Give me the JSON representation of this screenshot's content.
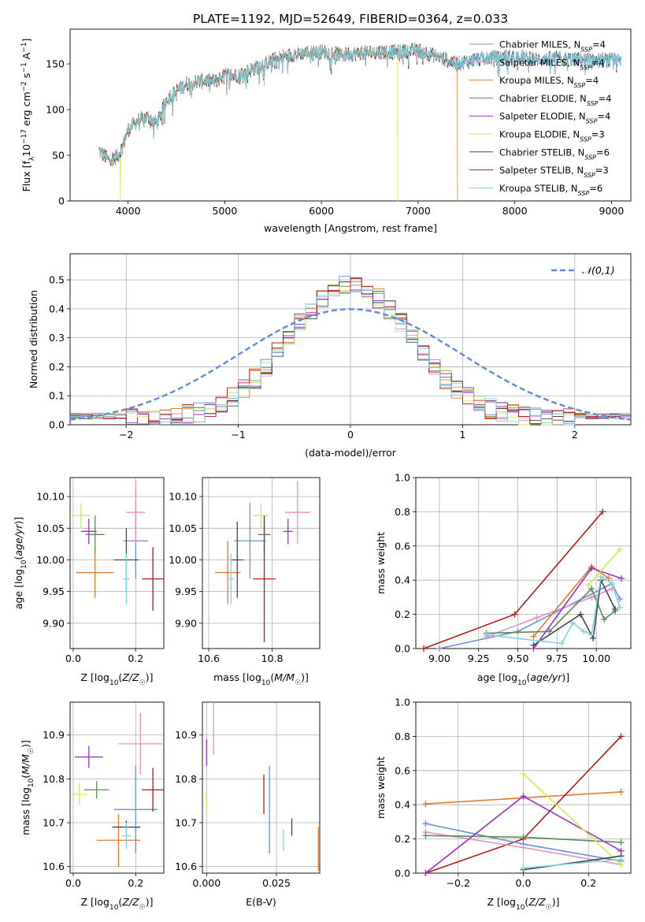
{
  "title": "PLATE=1192, MJD=52649, FIBERID=0364, z=0.033",
  "models": [
    {
      "key": "chabrier_miles",
      "label_main": "Chabrier MILES, N",
      "label_sub": "SSP",
      "label_tail": "=4",
      "color": "#6b8fd6"
    },
    {
      "key": "salpeter_miles",
      "label_main": "Salpeter MILES, N",
      "label_sub": "SSP",
      "label_tail": "=4",
      "color": "#e88fc0"
    },
    {
      "key": "kroupa_miles",
      "label_main": "Kroupa MILES, N",
      "label_sub": "SSP",
      "label_tail": "=4",
      "color": "#e07b2a"
    },
    {
      "key": "chabrier_elodie",
      "label_main": "Chabrier ELODIE, N",
      "label_sub": "SSP",
      "label_tail": "=4",
      "color": "#5b8a5b"
    },
    {
      "key": "salpeter_elodie",
      "label_main": "Salpeter ELODIE, N",
      "label_sub": "SSP",
      "label_tail": "=4",
      "color": "#9b30c0"
    },
    {
      "key": "kroupa_elodie",
      "label_main": "Kroupa ELODIE, N",
      "label_sub": "SSP",
      "label_tail": "=3",
      "color": "#d4e84a"
    },
    {
      "key": "chabrier_stelib",
      "label_main": "Chabrier STELIB, N",
      "label_sub": "SSP",
      "label_tail": "=6",
      "color": "#444444"
    },
    {
      "key": "salpeter_stelib",
      "label_main": "Salpeter STELIB, N",
      "label_sub": "SSP",
      "label_tail": "=3",
      "color": "#b01a1a"
    },
    {
      "key": "kroupa_stelib",
      "label_main": "Kroupa STELIB, N",
      "label_sub": "SSP",
      "label_tail": "=6",
      "color": "#7fd6dc"
    }
  ],
  "chart_data": [
    {
      "id": "spectrum",
      "type": "line",
      "xlabel": "wavelength [Angstrom, rest frame]",
      "ylabel": "Flux [f_λ 10^-17 erg cm^-2 s^-1 A^-1]",
      "xlim": [
        3400,
        9200
      ],
      "ylim": [
        0,
        188
      ],
      "xticks": [
        "4000",
        "5000",
        "6000",
        "7000",
        "8000",
        "9000"
      ],
      "yticks": [
        "0",
        "50",
        "100",
        "150"
      ],
      "continuum": [
        [
          3700,
          55
        ],
        [
          3800,
          45
        ],
        [
          3900,
          50
        ],
        [
          3950,
          62
        ],
        [
          4000,
          78
        ],
        [
          4100,
          88
        ],
        [
          4200,
          92
        ],
        [
          4300,
          85
        ],
        [
          4400,
          112
        ],
        [
          4500,
          120
        ],
        [
          4600,
          128
        ],
        [
          4700,
          130
        ],
        [
          4800,
          132
        ],
        [
          4900,
          131
        ],
        [
          5000,
          138
        ],
        [
          5100,
          137
        ],
        [
          5200,
          140
        ],
        [
          5400,
          150
        ],
        [
          5600,
          158
        ],
        [
          5800,
          162
        ],
        [
          6000,
          163
        ],
        [
          6200,
          160
        ],
        [
          6400,
          162
        ],
        [
          6600,
          163
        ],
        [
          6800,
          163
        ],
        [
          7000,
          165
        ],
        [
          7200,
          158
        ],
        [
          7400,
          150
        ],
        [
          7600,
          155
        ],
        [
          7800,
          157
        ],
        [
          8000,
          158
        ],
        [
          8200,
          155
        ],
        [
          8500,
          156
        ],
        [
          8800,
          154
        ],
        [
          9000,
          154
        ],
        [
          9100,
          152
        ]
      ],
      "drops": [
        {
          "series": "kroupa_elodie",
          "x": 3920
        },
        {
          "series": "kroupa_elodie",
          "x": 6790
        },
        {
          "series": "kroupa_miles",
          "x": 7410
        }
      ],
      "series_span": {
        "kroupa_miles": [
          3700,
          7410
        ],
        "salpeter_stelib": [
          3700,
          7410
        ],
        "kroupa_elodie": [
          3700,
          6790
        ]
      }
    },
    {
      "id": "residual_hist",
      "type": "step",
      "xlabel": "(data-model)/error",
      "ylabel": "Normed distribution",
      "xlim": [
        -2.5,
        2.5
      ],
      "ylim": [
        0,
        0.59
      ],
      "xticks": [
        -2,
        -1,
        0,
        1,
        2
      ],
      "xtick_labels": [
        "−2",
        "−1",
        "0",
        "1",
        "2"
      ],
      "yticks": [
        0,
        0.1,
        0.2,
        0.3,
        0.4,
        0.5
      ],
      "ytick_labels": [
        "0.0",
        "0.1",
        "0.2",
        "0.3",
        "0.4",
        "0.5"
      ],
      "bin_width": 0.1,
      "legend": "𝒩(0,1)",
      "gauss_color": "#5b8ad8"
    },
    {
      "id": "age_vs_Z",
      "type": "scatter",
      "xlabel": "Z [log10(Z/Z☉)]",
      "ylabel": "age  [log10(age/yr)]",
      "xlim": [
        -0.01,
        0.29
      ],
      "ylim": [
        9.86,
        10.13
      ],
      "xticks": [
        0,
        0.2
      ],
      "xtick_labels": [
        "0.0",
        "0.2"
      ],
      "yticks": [
        9.9,
        9.95,
        10.0,
        10.05,
        10.1
      ],
      "ytick_labels": [
        "9.90",
        "9.95",
        "10.00",
        "10.05",
        "10.10"
      ],
      "points": [
        {
          "s": "chabrier_miles",
          "x": 0.2,
          "y": 10.03,
          "xe": 0.04,
          "ye": 0.06
        },
        {
          "s": "salpeter_miles",
          "x": 0.2,
          "y": 10.075,
          "xe": 0.03,
          "ye": 0.05
        },
        {
          "s": "kroupa_miles",
          "x": 0.07,
          "y": 9.98,
          "xe": 0.06,
          "ye": 0.04
        },
        {
          "s": "chabrier_elodie",
          "x": 0.07,
          "y": 10.04,
          "xe": 0.03,
          "ye": 0.03
        },
        {
          "s": "salpeter_elodie",
          "x": 0.05,
          "y": 10.045,
          "xe": 0.025,
          "ye": 0.02
        },
        {
          "s": "kroupa_elodie",
          "x": 0.025,
          "y": 10.07,
          "xe": 0.03,
          "ye": 0.02
        },
        {
          "s": "chabrier_stelib",
          "x": 0.17,
          "y": 10.0,
          "xe": 0.04,
          "ye": 0.05
        },
        {
          "s": "salpeter_stelib",
          "x": 0.255,
          "y": 9.97,
          "xe": 0.035,
          "ye": 0.05
        },
        {
          "s": "kroupa_stelib",
          "x": 0.17,
          "y": 9.97,
          "xe": 0.01,
          "ye": 0.04
        }
      ]
    },
    {
      "id": "age_vs_mass",
      "type": "scatter",
      "xlabel": "mass [log10(M/M☉)]",
      "ylabel": "",
      "xlim": [
        10.58,
        10.95
      ],
      "ylim": [
        9.86,
        10.13
      ],
      "xticks": [
        10.6,
        10.8
      ],
      "xtick_labels": [
        "10.6",
        "10.8"
      ],
      "yticks": [
        9.9,
        9.95,
        10.0,
        10.05,
        10.1
      ],
      "ytick_labels": [
        "9.90",
        "9.95",
        "10.00",
        "10.05",
        "10.10"
      ],
      "points": [
        {
          "s": "chabrier_miles",
          "x": 10.73,
          "y": 10.03,
          "xe": 0.05,
          "ye": 0.06
        },
        {
          "s": "salpeter_miles",
          "x": 10.88,
          "y": 10.075,
          "xe": 0.04,
          "ye": 0.05
        },
        {
          "s": "kroupa_miles",
          "x": 10.66,
          "y": 9.98,
          "xe": 0.04,
          "ye": 0.05
        },
        {
          "s": "chabrier_elodie",
          "x": 10.775,
          "y": 10.04,
          "xe": 0.02,
          "ye": 0.03
        },
        {
          "s": "salpeter_elodie",
          "x": 10.85,
          "y": 10.045,
          "xe": 0.015,
          "ye": 0.02
        },
        {
          "s": "kroupa_elodie",
          "x": 10.765,
          "y": 10.07,
          "xe": 0.025,
          "ye": 0.02
        },
        {
          "s": "chabrier_stelib",
          "x": 10.69,
          "y": 10.0,
          "xe": 0.02,
          "ye": 0.06
        },
        {
          "s": "salpeter_stelib",
          "x": 10.775,
          "y": 9.97,
          "xe": 0.035,
          "ye": 0.1
        },
        {
          "s": "kroupa_stelib",
          "x": 10.67,
          "y": 9.97,
          "xe": 0.01,
          "ye": 0.04
        }
      ]
    },
    {
      "id": "weight_vs_age",
      "type": "line",
      "xlabel": "age  [log10(age/yr)]",
      "ylabel": "mass weight",
      "xlim": [
        8.85,
        10.22
      ],
      "ylim": [
        0,
        1.0
      ],
      "xticks": [
        9.0,
        9.25,
        9.5,
        9.75,
        10.0
      ],
      "xtick_labels": [
        "9.00",
        "9.25",
        "9.50",
        "9.75",
        "10.00"
      ],
      "yticks": [
        0,
        0.2,
        0.4,
        0.6,
        0.8,
        1.0
      ],
      "ytick_labels": [
        "0.0",
        "0.2",
        "0.4",
        "0.6",
        "0.8",
        "1.0"
      ],
      "series": [
        {
          "s": "salpeter_stelib",
          "pts": [
            [
              8.9,
              0.0
            ],
            [
              9.48,
              0.2
            ],
            [
              10.04,
              0.8
            ]
          ]
        },
        {
          "s": "chabrier_miles",
          "pts": [
            [
              9.0,
              0.0
            ],
            [
              9.5,
              0.1
            ],
            [
              10.1,
              0.38
            ],
            [
              10.15,
              0.29
            ]
          ]
        },
        {
          "s": "salpeter_miles",
          "pts": [
            [
              9.3,
              0.07
            ],
            [
              9.62,
              0.18
            ],
            [
              9.97,
              0.3
            ],
            [
              10.1,
              0.35
            ]
          ]
        },
        {
          "s": "kroupa_miles",
          "pts": [
            [
              9.6,
              0.07
            ],
            [
              9.97,
              0.48
            ],
            [
              10.08,
              0.41
            ]
          ]
        },
        {
          "s": "chabrier_elodie",
          "pts": [
            [
              9.3,
              0.09
            ],
            [
              9.7,
              0.1
            ],
            [
              9.97,
              0.35
            ],
            [
              10.05,
              0.17
            ],
            [
              10.12,
              0.22
            ]
          ]
        },
        {
          "s": "salpeter_elodie",
          "pts": [
            [
              9.6,
              0.0
            ],
            [
              9.97,
              0.47
            ],
            [
              10.16,
              0.41
            ]
          ]
        },
        {
          "s": "kroupa_elodie",
          "pts": [
            [
              9.95,
              0.37
            ],
            [
              10.15,
              0.58
            ]
          ]
        },
        {
          "s": "chabrier_stelib",
          "pts": [
            [
              9.6,
              0.02
            ],
            [
              9.9,
              0.2
            ],
            [
              9.98,
              0.06
            ],
            [
              10.03,
              0.4
            ],
            [
              10.12,
              0.23
            ]
          ]
        },
        {
          "s": "kroupa_stelib",
          "pts": [
            [
              9.3,
              0.08
            ],
            [
              9.78,
              0.03
            ],
            [
              9.85,
              0.15
            ],
            [
              9.92,
              0.1
            ],
            [
              9.97,
              0.08
            ],
            [
              10.03,
              0.42
            ],
            [
              10.1,
              0.38
            ],
            [
              10.15,
              0.24
            ]
          ]
        }
      ]
    },
    {
      "id": "mass_vs_Z",
      "type": "scatter",
      "xlabel": "Z [log10(Z/Z☉)]",
      "ylabel": "mass [log10(M/M☉)]",
      "xlim": [
        -0.01,
        0.29
      ],
      "ylim": [
        10.585,
        10.975
      ],
      "xticks": [
        0,
        0.2
      ],
      "xtick_labels": [
        "0.0",
        "0.2"
      ],
      "yticks": [
        10.6,
        10.7,
        10.8,
        10.9
      ],
      "ytick_labels": [
        "10.6",
        "10.7",
        "10.8",
        "10.9"
      ],
      "points": [
        {
          "s": "chabrier_miles",
          "x": 0.2,
          "y": 10.73,
          "xe": 0.07,
          "ye": 0.1
        },
        {
          "s": "salpeter_miles",
          "x": 0.215,
          "y": 10.88,
          "xe": 0.07,
          "ye": 0.07
        },
        {
          "s": "kroupa_miles",
          "x": 0.145,
          "y": 10.66,
          "xe": 0.07,
          "ye": 0.06
        },
        {
          "s": "chabrier_elodie",
          "x": 0.075,
          "y": 10.775,
          "xe": 0.04,
          "ye": 0.02
        },
        {
          "s": "salpeter_elodie",
          "x": 0.05,
          "y": 10.85,
          "xe": 0.045,
          "ye": 0.025
        },
        {
          "s": "kroupa_elodie",
          "x": 0.02,
          "y": 10.765,
          "xe": 0.025,
          "ye": 0.025
        },
        {
          "s": "chabrier_stelib",
          "x": 0.17,
          "y": 10.69,
          "xe": 0.045,
          "ye": 0.015
        },
        {
          "s": "salpeter_stelib",
          "x": 0.255,
          "y": 10.775,
          "xe": 0.035,
          "ye": 0.05
        },
        {
          "s": "kroupa_stelib",
          "x": 0.17,
          "y": 10.67,
          "xe": 0.015,
          "ye": 0.03
        }
      ]
    },
    {
      "id": "mass_vs_EBV",
      "type": "scatter",
      "xlabel": "E(B-V)",
      "ylabel": "",
      "xlim": [
        -0.0015,
        0.0405
      ],
      "ylim": [
        10.585,
        10.975
      ],
      "xticks": [
        0,
        0.025
      ],
      "xtick_labels": [
        "0.000",
        "0.025"
      ],
      "yticks": [
        10.6,
        10.7,
        10.8,
        10.9
      ],
      "ytick_labels": [
        "10.6",
        "10.7",
        "10.8",
        "10.9"
      ],
      "points": [
        {
          "s": "chabrier_miles",
          "x": 0.0225,
          "y": 10.73,
          "xe": 0,
          "ye": 0.1
        },
        {
          "s": "salpeter_miles",
          "x": 0.0025,
          "y": 10.915,
          "xe": 0,
          "ye": 0.06
        },
        {
          "s": "kroupa_miles",
          "x": 0.04,
          "y": 10.64,
          "xe": 0,
          "ye": 0.05
        },
        {
          "s": "chabrier_elodie",
          "x": 0.0,
          "y": 10.76,
          "xe": 0,
          "ye": 0.01
        },
        {
          "s": "salpeter_elodie",
          "x": 0.0,
          "y": 10.86,
          "xe": 0,
          "ye": 0.03
        },
        {
          "s": "kroupa_elodie",
          "x": 0.0,
          "y": 10.75,
          "xe": 0,
          "ye": 0.02
        },
        {
          "s": "chabrier_stelib",
          "x": 0.0305,
          "y": 10.69,
          "xe": 0,
          "ye": 0.02
        },
        {
          "s": "salpeter_stelib",
          "x": 0.0205,
          "y": 10.765,
          "xe": 0,
          "ye": 0.045
        },
        {
          "s": "kroupa_stelib",
          "x": 0.0275,
          "y": 10.66,
          "xe": 0,
          "ye": 0.025
        }
      ]
    },
    {
      "id": "weight_vs_Z",
      "type": "line",
      "xlabel": "Z [log10(Z/Z☉)]",
      "ylabel": "mass weight",
      "xlim": [
        -0.33,
        0.33
      ],
      "ylim": [
        0,
        1.0
      ],
      "xticks": [
        -0.2,
        0,
        0.2
      ],
      "xtick_labels": [
        "−0.2",
        "0.0",
        "0.2"
      ],
      "yticks": [
        0,
        0.2,
        0.4,
        0.6,
        0.8,
        1.0
      ],
      "ytick_labels": [
        "0.0",
        "0.2",
        "0.4",
        "0.6",
        "0.8",
        "1.0"
      ],
      "series": [
        {
          "s": "kroupa_miles",
          "pts": [
            [
              -0.3,
              0.405
            ],
            [
              0.3,
              0.475
            ]
          ]
        },
        {
          "s": "salpeter_stelib",
          "pts": [
            [
              -0.3,
              0.0
            ],
            [
              0.0,
              0.2
            ],
            [
              0.3,
              0.8
            ]
          ]
        },
        {
          "s": "chabrier_miles",
          "pts": [
            [
              -0.3,
              0.29
            ],
            [
              0.0,
              0.17
            ],
            [
              0.3,
              0.07
            ]
          ]
        },
        {
          "s": "salpeter_miles",
          "pts": [
            [
              -0.3,
              0.24
            ],
            [
              0.0,
              0.15
            ],
            [
              0.3,
              0.05
            ]
          ]
        },
        {
          "s": "chabrier_elodie",
          "pts": [
            [
              -0.3,
              0.22
            ],
            [
              0.0,
              0.21
            ],
            [
              0.3,
              0.18
            ]
          ]
        },
        {
          "s": "salpeter_elodie",
          "pts": [
            [
              -0.3,
              0.0
            ],
            [
              0.0,
              0.45
            ],
            [
              0.3,
              0.13
            ]
          ]
        },
        {
          "s": "kroupa_elodie",
          "pts": [
            [
              0.0,
              0.58
            ],
            [
              0.3,
              0.05
            ]
          ]
        },
        {
          "s": "chabrier_stelib",
          "pts": [
            [
              0.0,
              0.02
            ],
            [
              0.3,
              0.1
            ]
          ]
        },
        {
          "s": "kroupa_stelib",
          "pts": [
            [
              0.0,
              0.03
            ],
            [
              0.3,
              0.08
            ]
          ]
        }
      ]
    }
  ]
}
